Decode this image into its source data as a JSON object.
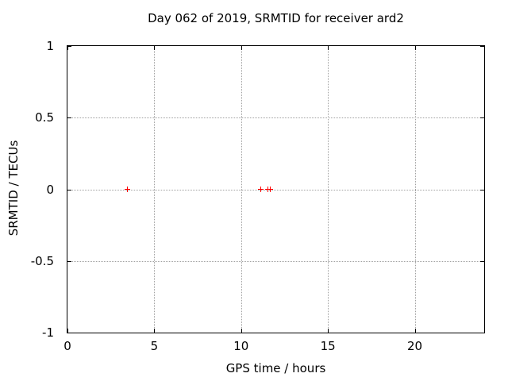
{
  "chart_data": {
    "type": "scatter",
    "title": "Day 062 of 2019, SRMTID for receiver ard2",
    "xlabel": "GPS time / hours",
    "ylabel": "SRMTID / TECUs",
    "xlim": [
      0,
      24
    ],
    "ylim": [
      -1,
      1
    ],
    "xticks": [
      0,
      5,
      10,
      15,
      20
    ],
    "yticks": [
      -1,
      -0.5,
      0,
      0.5,
      1
    ],
    "grid": "dotted",
    "legend_position": "none",
    "series": [
      {
        "name": "SRMTID",
        "marker": "plus",
        "color": "#ff0000",
        "points": [
          {
            "x": 3.44,
            "y": 0
          },
          {
            "x": 11.15,
            "y": 0
          },
          {
            "x": 11.54,
            "y": 0
          },
          {
            "x": 11.68,
            "y": 0
          }
        ]
      }
    ],
    "colors": {
      "background": "#ffffff",
      "axis": "#000000",
      "grid": "#a0a0a0",
      "text": "#000000"
    }
  }
}
